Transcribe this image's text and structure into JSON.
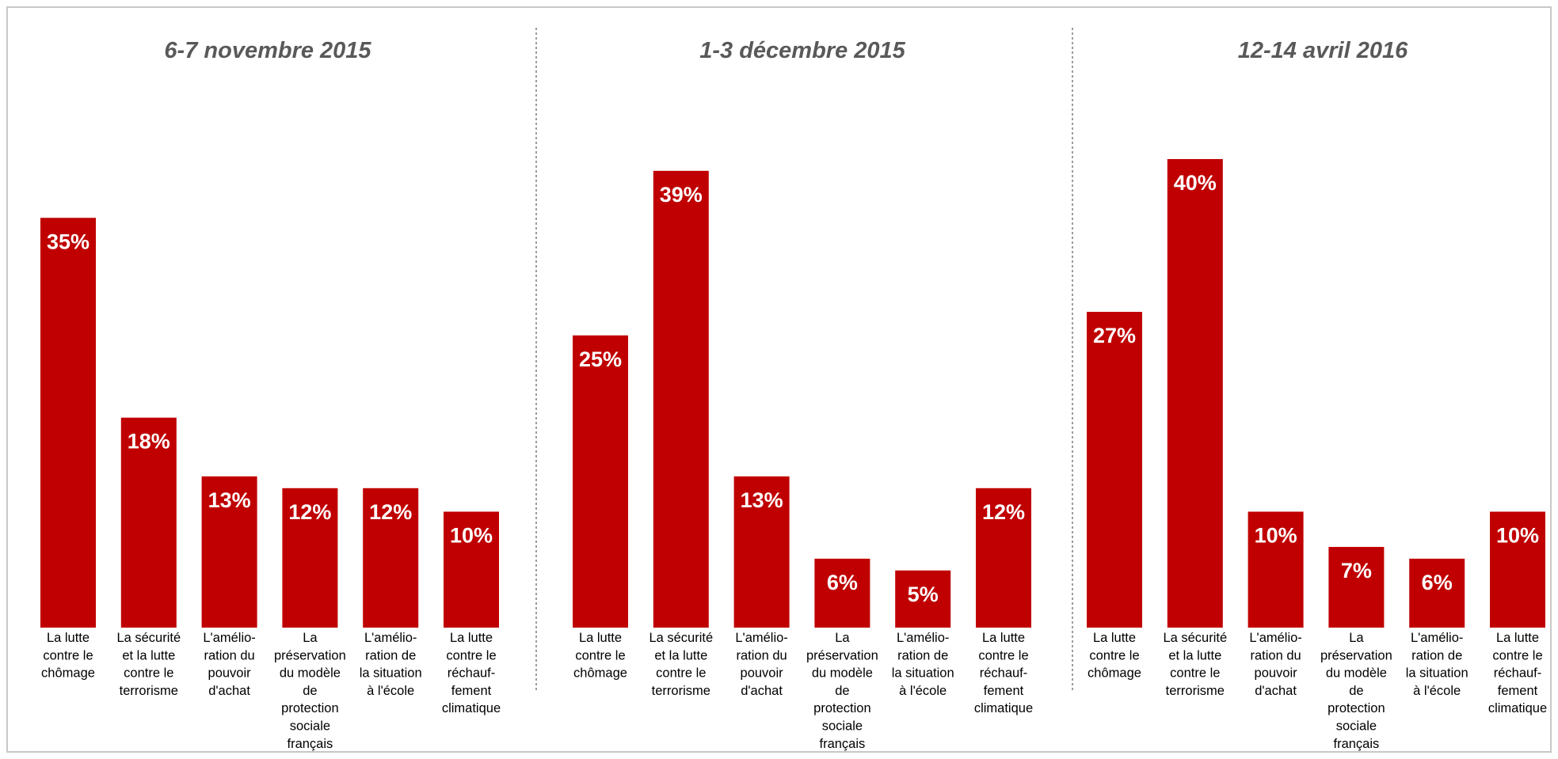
{
  "chart_data": [
    {
      "type": "bar",
      "title": "6-7 novembre 2015",
      "categories": [
        [
          "La lutte",
          "contre le",
          "chômage"
        ],
        [
          "La sécurité",
          "et la lutte",
          "contre le",
          "terrorisme"
        ],
        [
          "L'amélio-",
          "ration du",
          "pouvoir",
          "d'achat"
        ],
        [
          "La",
          "préservation",
          "du modèle",
          "de",
          "protection",
          "sociale",
          "français"
        ],
        [
          "L'amélio-",
          "ration de",
          "la situation",
          "à l'école"
        ],
        [
          "La lutte",
          "contre le",
          "réchauf-",
          "fement",
          "climatique"
        ]
      ],
      "values": [
        35,
        18,
        13,
        12,
        12,
        10
      ],
      "value_labels": [
        "35%",
        "18%",
        "13%",
        "12%",
        "12%",
        "10%"
      ],
      "unit": "%",
      "grid": false,
      "legend": "none"
    },
    {
      "type": "bar",
      "title": "1-3 décembre 2015",
      "categories": [
        [
          "La lutte",
          "contre le",
          "chômage"
        ],
        [
          "La sécurité",
          "et la lutte",
          "contre le",
          "terrorisme"
        ],
        [
          "L'amélio-",
          "ration du",
          "pouvoir",
          "d'achat"
        ],
        [
          "La",
          "préservation",
          "du modèle",
          "de",
          "protection",
          "sociale",
          "français"
        ],
        [
          "L'amélio-",
          "ration de",
          "la situation",
          "à l'école"
        ],
        [
          "La lutte",
          "contre le",
          "réchauf-",
          "fement",
          "climatique"
        ]
      ],
      "values": [
        25,
        39,
        13,
        6,
        5,
        12
      ],
      "value_labels": [
        "25%",
        "39%",
        "13%",
        "6%",
        "5%",
        "12%"
      ],
      "unit": "%",
      "grid": false,
      "legend": "none"
    },
    {
      "type": "bar",
      "title": "12-14 avril 2016",
      "categories": [
        [
          "La lutte",
          "contre le",
          "chômage"
        ],
        [
          "La sécurité",
          "et la lutte",
          "contre le",
          "terrorisme"
        ],
        [
          "L'amélio-",
          "ration du",
          "pouvoir",
          "d'achat"
        ],
        [
          "La",
          "préservation",
          "du modèle",
          "de",
          "protection",
          "sociale",
          "français"
        ],
        [
          "L'amélio-",
          "ration de",
          "la situation",
          "à l'école"
        ],
        [
          "La lutte",
          "contre le",
          "réchauf-",
          "fement",
          "climatique"
        ]
      ],
      "values": [
        27,
        40,
        10,
        7,
        6,
        10
      ],
      "value_labels": [
        "27%",
        "40%",
        "10%",
        "7%",
        "6%",
        "10%"
      ],
      "unit": "%",
      "grid": false,
      "legend": "none"
    }
  ],
  "colors": {
    "bar": "#c00000",
    "bar_border": "#ffffff",
    "title": "#595959",
    "separator": "#595959",
    "frame": "#c8c8c8"
  }
}
